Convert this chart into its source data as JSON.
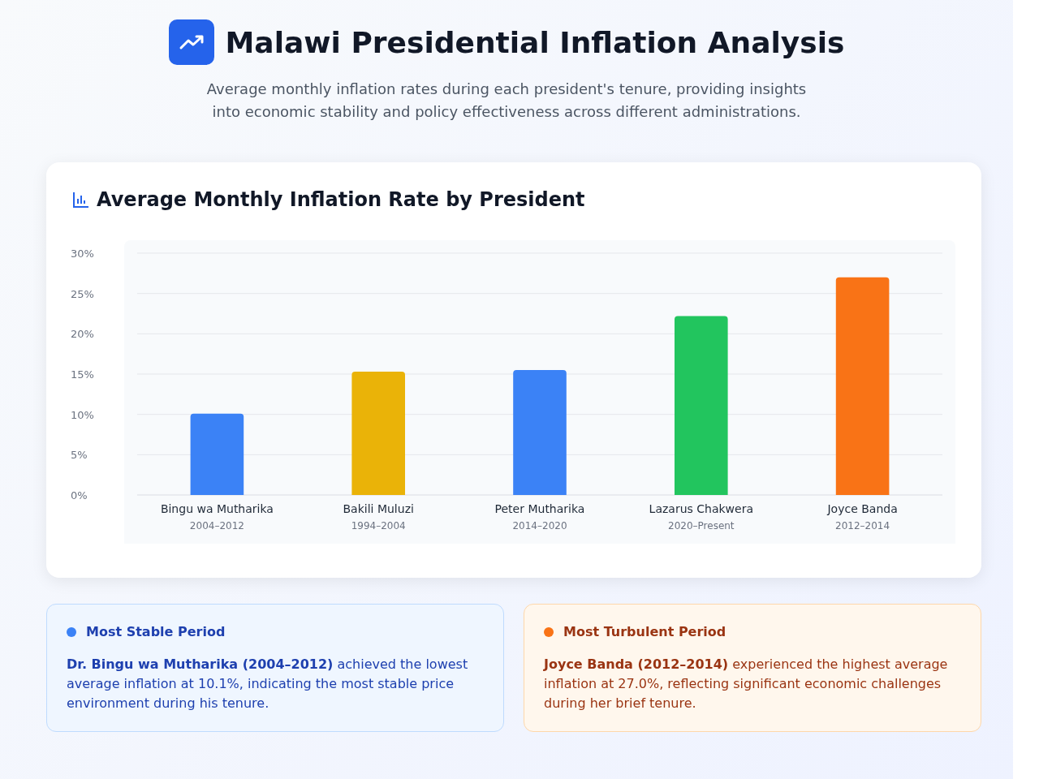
{
  "chart_data": {
    "type": "bar",
    "title": "Malawi Presidential Inflation Analysis",
    "subtitle": "Average monthly inflation rates during each president's tenure, providing insights into economic stability and policy effectiveness across different administrations.",
    "categories": [
      "Bingu wa Mutharika",
      "Bakili Muluzi",
      "Peter Mutharika",
      "Lazarus Chakwera",
      "Joyce Banda"
    ],
    "values": [
      10.1,
      15.3,
      15.5,
      22.2,
      27.0
    ],
    "colors": [
      "#3b82f6",
      "#eab308",
      "#3b82f6",
      "#22c55e",
      "#f97316"
    ],
    "ylim": [
      0,
      30
    ],
    "yticks": [
      {
        "value": 0,
        "label": "0%"
      },
      {
        "value": 5,
        "label": "5%"
      },
      {
        "value": 10,
        "label": "10%"
      },
      {
        "value": 15,
        "label": "15%"
      },
      {
        "value": 20,
        "label": "20%"
      },
      {
        "value": 25,
        "label": "25%"
      },
      {
        "value": 30,
        "label": "30%"
      }
    ],
    "grid": "y",
    "annotations": [
      "Average Monthly Inflation Rate by President",
      "2004–2012",
      "1994–2004",
      "2014–2020",
      "2020–Present",
      "2012–2014",
      "Most Stable Period",
      "Dr. Bingu wa Mutharika (2004–2012)",
      " achieved the lowest average inflation at 10.1%, indicating the most stable price environment during his tenure.",
      "Most Turbulent Period",
      "Joyce Banda (2012–2014)",
      " experienced the highest average inflation at 27.0%, reflecting significant economic challenges during her brief tenure."
    ]
  }
}
